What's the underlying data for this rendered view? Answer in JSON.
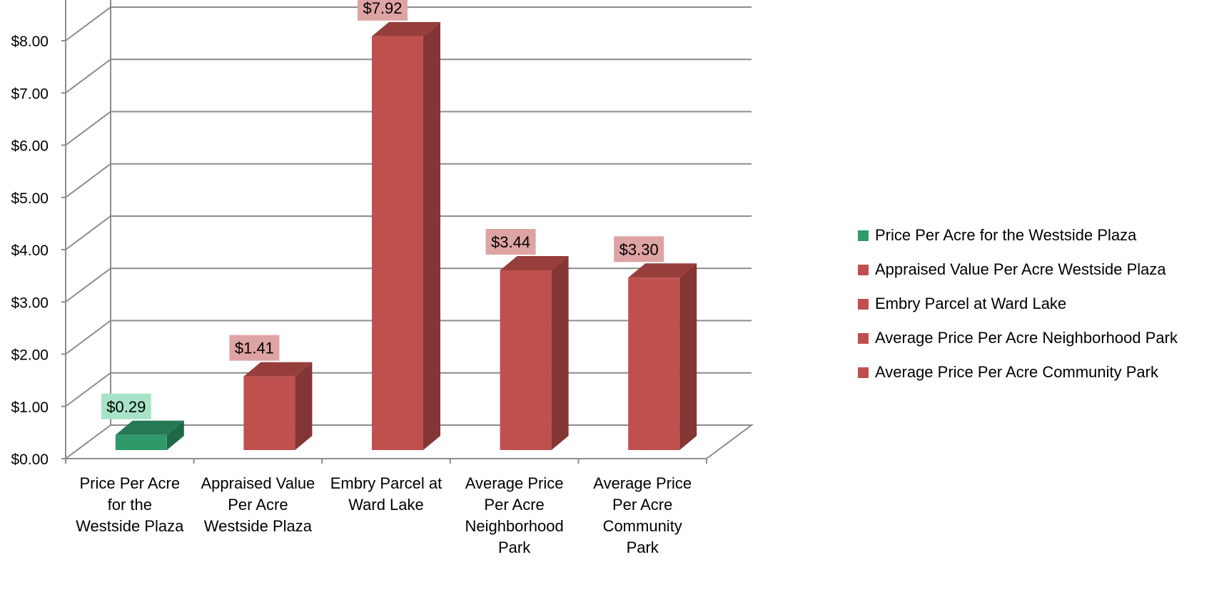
{
  "chart_data": {
    "type": "bar",
    "categories": [
      "Price Per Acre for the Westside Plaza",
      "Appraised Value Per Acre Westside Plaza",
      "Embry Parcel at Ward Lake",
      "Average Price Per Acre Neighborhood Park",
      "Average Price Per Acre Community Park"
    ],
    "category_label_lines": [
      [
        "Price Per Acre",
        "for the",
        "Westside Plaza"
      ],
      [
        "Appraised Value",
        "Per Acre",
        "Westside Plaza"
      ],
      [
        "Embry Parcel at",
        "Ward Lake"
      ],
      [
        "Average Price",
        "Per Acre",
        "Neighborhood",
        "Park"
      ],
      [
        "Average Price",
        "Per Acre",
        "Community",
        "Park"
      ]
    ],
    "values": [
      0.29,
      1.41,
      7.92,
      3.44,
      3.3
    ],
    "data_labels": [
      "$0.29",
      "$1.41",
      "$7.92",
      "$3.44",
      "$3.30"
    ],
    "bar_colors": [
      "#2e9a6a",
      "#c0504d",
      "#c0504d",
      "#c0504d",
      "#c0504d"
    ],
    "label_bg_colors": [
      "#a8e3c8",
      "#dea3a3",
      "#dea3a3",
      "#dea3a3",
      "#dea3a3"
    ],
    "ylim": [
      0,
      8
    ],
    "y_ticks": [
      "$0.00",
      "$1.00",
      "$2.00",
      "$3.00",
      "$4.00",
      "$5.00",
      "$6.00",
      "$7.00",
      "$8.00"
    ],
    "grid": true,
    "style": "3d-column",
    "legend_position": "right",
    "legend": [
      {
        "label": "Price Per Acre for the Westside Plaza",
        "color": "#2e9a6a"
      },
      {
        "label": "Appraised Value Per Acre Westside Plaza",
        "color": "#c0504d"
      },
      {
        "label": "Embry Parcel at Ward Lake",
        "color": "#c0504d"
      },
      {
        "label": "Average Price Per Acre Neighborhood Park",
        "color": "#c0504d"
      },
      {
        "label": "Average Price Per Acre Community Park",
        "color": "#c0504d"
      }
    ]
  }
}
